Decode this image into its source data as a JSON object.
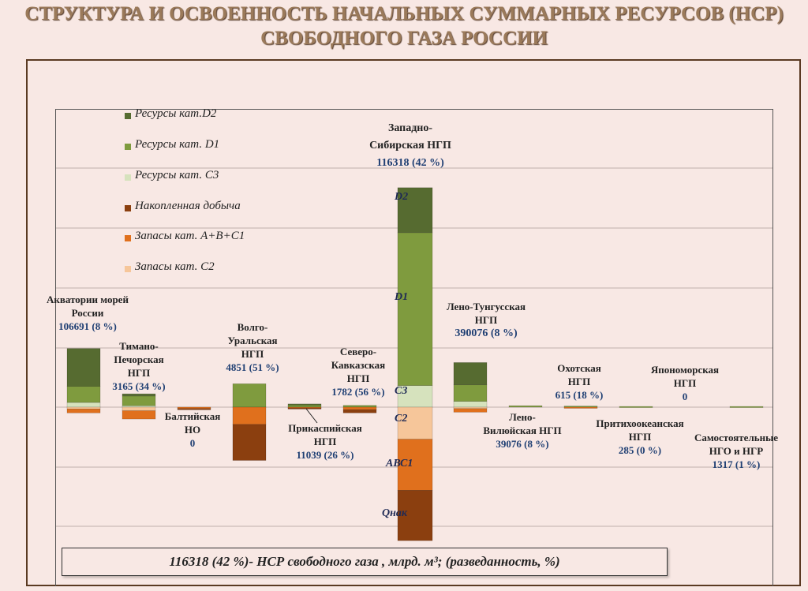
{
  "page": {
    "title_line1": "СТРУКТУРА И ОСВОЕННОСТЬ НАЧАЛЬНЫХ СУММАРНЫХ РЕСУРСОВ (НСР)",
    "title_line2": "СВОБОДНОГО ГАЗА РОССИИ",
    "footer_text": "116318 (42 %)- НСР свободного газа , млрд. м³; (разведанность, %)"
  },
  "colors": {
    "D2": "#566b30",
    "D1": "#7f9b3e",
    "C3": "#d6e2bd",
    "Q": "#8b3f0f",
    "ABC1": "#e0701d",
    "C2": "#f6c69a"
  },
  "chart_data": {
    "type": "bar",
    "stacked": true,
    "title": "",
    "xlabel": "",
    "ylabel": "",
    "note": "stacked above and below a common baseline; values are bar extents in percent of the Западно-Сибирская НГП bar height (approximate, no numeric axis printed)",
    "legend": [
      {
        "key": "D2",
        "label": "Ресурсы кат.D2"
      },
      {
        "key": "D1",
        "label": "Ресурсы кат. D1"
      },
      {
        "key": "C3",
        "label": "Ресурсы кат. С3"
      },
      {
        "key": "Q",
        "label": "Накопленная добыча"
      },
      {
        "key": "ABC1",
        "label": "Запасы кат. А+В+С1"
      },
      {
        "key": "C2",
        "label": "Запасы кат. С2"
      }
    ],
    "legend_position": "top-left",
    "segment_labels": {
      "D2": "D2",
      "D1": "D1",
      "C3": "С3",
      "C2": "С2",
      "ABC1": "АВС1",
      "Q": "Qнак"
    },
    "regions": [
      {
        "name": "Акватории морей России",
        "value": "106691 (8 %)",
        "up": {
          "D2": 10.5,
          "D1": 4.5,
          "C3": 1.3
        },
        "down": {
          "C2": 0.5,
          "ABC1": 1.1,
          "Q": 0
        }
      },
      {
        "name": "Тимано-Печорская НГП",
        "value": "3165 (34 %)",
        "up": {
          "D2": 0.6,
          "D1": 2.7,
          "C3": 0.4
        },
        "down": {
          "C2": 1.0,
          "ABC1": 2.3,
          "Q": 0
        }
      },
      {
        "name": "Балтийская НО",
        "value": "0",
        "up": {
          "D2": 0,
          "D1": 0,
          "C3": 0
        },
        "down": {
          "C2": 0,
          "ABC1": 0.4,
          "Q": 0.2
        }
      },
      {
        "name": "Волго-Уральская НГП",
        "value": "4851 (51 %)",
        "up": {
          "D2": 0,
          "D1": 6.5,
          "C3": 0
        },
        "down": {
          "C2": 0,
          "ABC1": 4.8,
          "Q": 10
        }
      },
      {
        "name": "Прикаспийская НГП",
        "value": "11039 (26 %)",
        "up": {
          "D2": 0.3,
          "D1": 0.6,
          "C3": 0
        },
        "down": {
          "C2": 0,
          "ABC1": 0.2,
          "Q": 0.2
        }
      },
      {
        "name": "Северо-Кавказская НГП",
        "value": "1782 (56 %)",
        "up": {
          "D2": 0,
          "D1": 0.5,
          "C3": 0
        },
        "down": {
          "C2": 0,
          "ABC1": 0.7,
          "Q": 0.9
        }
      },
      {
        "name": "Западно-Сибирская НГП",
        "value": "116318 (42 %)",
        "up": {
          "D2": 12.5,
          "D1": 42.5,
          "C3": 6.0
        },
        "down": {
          "C2": 8.9,
          "ABC1": 14.2,
          "Q": 14.0
        }
      },
      {
        "name": "Лено-Тунгусская НГП",
        "value": "390076 (8 %)",
        "up": {
          "D2": 6.2,
          "D1": 4.6,
          "C3": 1.6
        },
        "down": {
          "C2": 0.4,
          "ABC1": 1.0,
          "Q": 0
        }
      },
      {
        "name": "Лено-Вилюйская НГП",
        "value": "39076 (8 %)",
        "up": {
          "D2": 0,
          "D1": 0.4,
          "C3": 0
        },
        "down": {
          "C2": 0,
          "ABC1": 0,
          "Q": 0
        }
      },
      {
        "name": "Охотская НГП",
        "value": "615 (18 %)",
        "up": {
          "D2": 0,
          "D1": 0.3,
          "C3": 0
        },
        "down": {
          "C2": 0,
          "ABC1": 0.2,
          "Q": 0
        }
      },
      {
        "name": "Притихоокеанская НГП",
        "value": "285 (0 %)",
        "up": {
          "D2": 0,
          "D1": 0.2,
          "C3": 0
        },
        "down": {
          "C2": 0,
          "ABC1": 0,
          "Q": 0
        }
      },
      {
        "name": "Япономорская НГП",
        "value": "0",
        "up": {
          "D2": 0,
          "D1": 0,
          "C3": 0
        },
        "down": {
          "C2": 0,
          "ABC1": 0,
          "Q": 0
        }
      },
      {
        "name": "Самостоятельные НГО и НГР",
        "value": "1317 (1 %)",
        "up": {
          "D2": 0,
          "D1": 0.2,
          "C3": 0
        },
        "down": {
          "C2": 0,
          "ABC1": 0,
          "Q": 0
        }
      }
    ]
  }
}
